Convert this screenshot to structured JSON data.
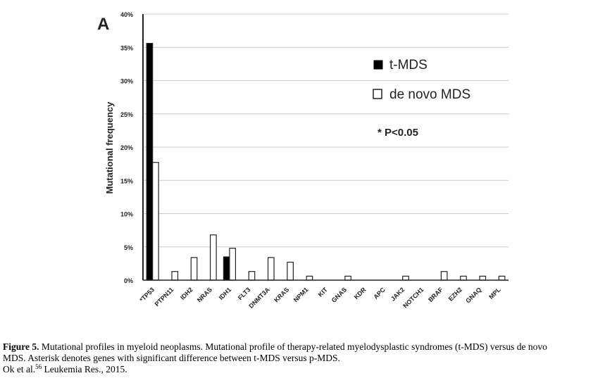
{
  "panel_label": "A",
  "chart_data": {
    "type": "bar",
    "ylabel": "Mutational frequency",
    "ylim": [
      0,
      40
    ],
    "yticks": [
      "0%",
      "5%",
      "10%",
      "15%",
      "20%",
      "25%",
      "30%",
      "35%",
      "40%"
    ],
    "grid": true,
    "legend_position": "top-right",
    "categories": [
      "*TP53",
      "PTPN11",
      "IDH2",
      "NRAS",
      "IDH1",
      "FLT3",
      "DNMT3A",
      "KRAS",
      "NPM1",
      "KIT",
      "GNAS",
      "KDR",
      "APC",
      "JAK2",
      "NOTCH1",
      "BRAF",
      "EZH2",
      "GNAQ",
      "MPL"
    ],
    "series": [
      {
        "name": "t-MDS",
        "color": "#000000",
        "values": [
          35.6,
          0,
          0,
          0,
          3.5,
          0,
          0,
          0,
          0,
          0,
          0,
          0,
          0,
          0,
          0,
          0,
          0,
          0,
          0
        ]
      },
      {
        "name": "de novo MDS",
        "color": "#ffffff",
        "values": [
          17.7,
          1.3,
          3.4,
          6.8,
          4.8,
          1.3,
          3.4,
          2.7,
          0.6,
          0,
          0.6,
          0,
          0,
          0.6,
          0,
          1.3,
          0.6,
          0.6,
          0.6
        ]
      }
    ],
    "annotation": "* P<0.05"
  },
  "caption": {
    "fig_label": "Figure 5.",
    "line1": " Mutational profiles in myeloid neoplasms. Mutational profile of therapy-related myelodysplastic syndromes (t-MDS) versus de novo",
    "line2": "MDS. Asterisk denotes genes with significant difference between t-MDS versus p-MDS.",
    "line3_pre": "Ok et al.",
    "line3_sup": "56",
    "line3_post": " Leukemia Res., 2015."
  }
}
